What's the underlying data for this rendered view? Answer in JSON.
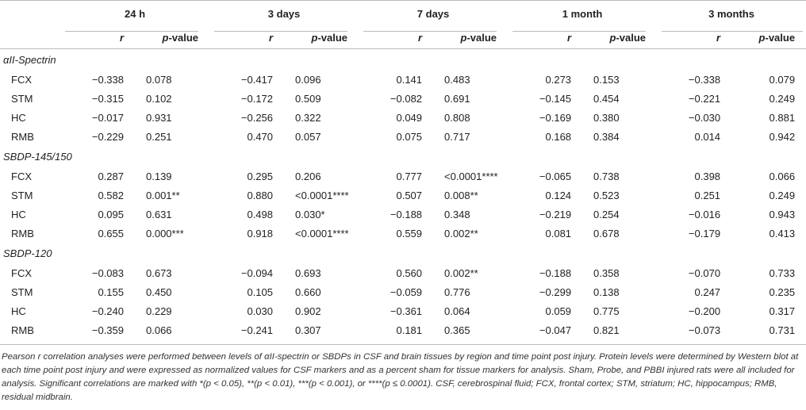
{
  "time_points": [
    "24 h",
    "3 days",
    "7 days",
    "1 month",
    "3 months"
  ],
  "col_r": "r",
  "col_p_italic": "p",
  "col_p_rest": "-value",
  "sections": [
    {
      "title": "αII-Spectrin",
      "rows": [
        {
          "label": "FCX",
          "values": [
            "−0.338",
            "0.078",
            "−0.417",
            "0.096",
            "0.141",
            "0.483",
            "0.273",
            "0.153",
            "−0.338",
            "0.079"
          ]
        },
        {
          "label": "STM",
          "values": [
            "−0.315",
            "0.102",
            "−0.172",
            "0.509",
            "−0.082",
            "0.691",
            "−0.145",
            "0.454",
            "−0.221",
            "0.249"
          ]
        },
        {
          "label": "HC",
          "values": [
            "−0.017",
            "0.931",
            "−0.256",
            "0.322",
            "0.049",
            "0.808",
            "−0.169",
            "0.380",
            "−0.030",
            "0.881"
          ]
        },
        {
          "label": "RMB",
          "values": [
            "−0.229",
            "0.251",
            "0.470",
            "0.057",
            "0.075",
            "0.717",
            "0.168",
            "0.384",
            "0.014",
            "0.942"
          ]
        }
      ]
    },
    {
      "title": "SBDP-145/150",
      "rows": [
        {
          "label": "FCX",
          "values": [
            "0.287",
            "0.139",
            "0.295",
            "0.206",
            "0.777",
            "<0.0001****",
            "−0.065",
            "0.738",
            "0.398",
            "0.066"
          ]
        },
        {
          "label": "STM",
          "values": [
            "0.582",
            "0.001**",
            "0.880",
            "<0.0001****",
            "0.507",
            "0.008**",
            "0.124",
            "0.523",
            "0.251",
            "0.249"
          ]
        },
        {
          "label": "HC",
          "values": [
            "0.095",
            "0.631",
            "0.498",
            "0.030*",
            "−0.188",
            "0.348",
            "−0.219",
            "0.254",
            "−0.016",
            "0.943"
          ]
        },
        {
          "label": "RMB",
          "values": [
            "0.655",
            "0.000***",
            "0.918",
            "<0.0001****",
            "0.559",
            "0.002**",
            "0.081",
            "0.678",
            "−0.179",
            "0.413"
          ]
        }
      ]
    },
    {
      "title": "SBDP-120",
      "rows": [
        {
          "label": "FCX",
          "values": [
            "−0.083",
            "0.673",
            "−0.094",
            "0.693",
            "0.560",
            "0.002**",
            "−0.188",
            "0.358",
            "−0.070",
            "0.733"
          ]
        },
        {
          "label": "STM",
          "values": [
            "0.155",
            "0.450",
            "0.105",
            "0.660",
            "−0.059",
            "0.776",
            "−0.299",
            "0.138",
            "0.247",
            "0.235"
          ]
        },
        {
          "label": "HC",
          "values": [
            "−0.240",
            "0.229",
            "0.030",
            "0.902",
            "−0.361",
            "0.064",
            "0.059",
            "0.775",
            "−0.200",
            "0.317"
          ]
        },
        {
          "label": "RMB",
          "values": [
            "−0.359",
            "0.066",
            "−0.241",
            "0.307",
            "0.181",
            "0.365",
            "−0.047",
            "0.821",
            "−0.073",
            "0.731"
          ]
        }
      ]
    }
  ],
  "footnote": "Pearson r correlation analyses were performed between levels of αII-spectrin or SBDPs in CSF and brain tissues by region and time point post injury. Protein levels were determined by Western blot at each time point post injury and were expressed as normalized values for CSF markers and as a percent sham for tissue markers for analysis. Sham, Probe, and PBBI injured rats were all included for analysis. Significant correlations are marked with *(p < 0.05), **(p < 0.01), ***(p < 0.001), or ****(p ≤ 0.0001). CSF, cerebrospinal fluid; FCX, frontal cortex; STM, striatum; HC, hippocampus; RMB, residual midbrain."
}
